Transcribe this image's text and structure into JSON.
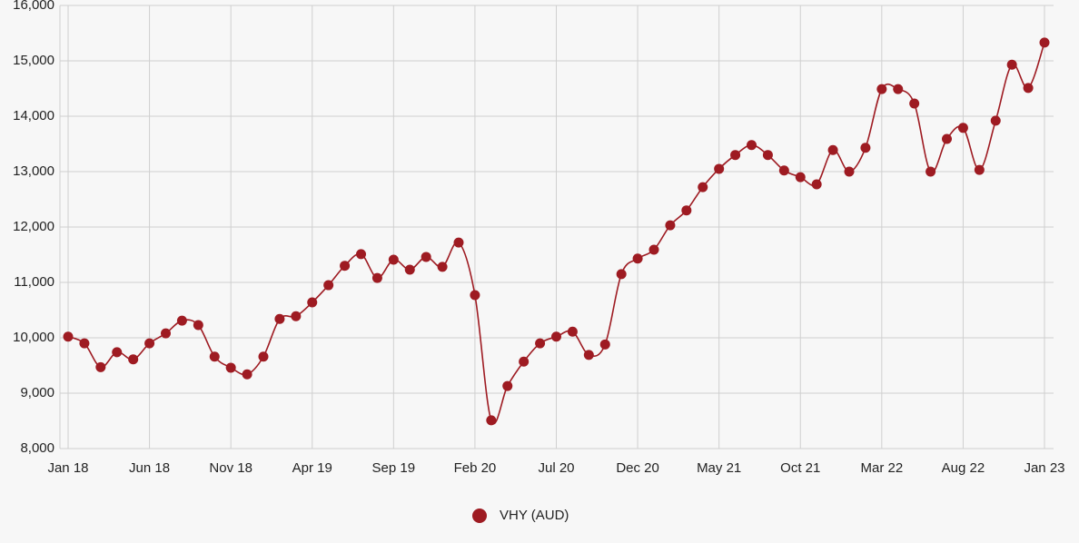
{
  "chart_data": {
    "type": "line",
    "categories": [
      "Jan 18",
      null,
      null,
      null,
      null,
      "Jun 18",
      null,
      null,
      null,
      null,
      "Nov 18",
      null,
      null,
      null,
      null,
      "Apr 19",
      null,
      null,
      null,
      null,
      "Sep 19",
      null,
      null,
      null,
      null,
      "Feb 20",
      null,
      null,
      null,
      null,
      "Jul 20",
      null,
      null,
      null,
      null,
      "Dec 20",
      null,
      null,
      null,
      null,
      "May 21",
      null,
      null,
      null,
      null,
      "Oct 21",
      null,
      null,
      null,
      null,
      "Mar 22",
      null,
      null,
      null,
      null,
      "Aug 22",
      null,
      null,
      null,
      null,
      "Jan 23"
    ],
    "series": [
      {
        "name": "VHY (AUD)",
        "color": "#9e1b22",
        "values": [
          10020,
          9900,
          9470,
          9740,
          9610,
          9900,
          10080,
          10310,
          10230,
          9660,
          9460,
          9340,
          9660,
          10340,
          10390,
          10640,
          10950,
          11300,
          11510,
          11080,
          11410,
          11230,
          11460,
          11280,
          11720,
          10770,
          8510,
          9130,
          9570,
          9900,
          10020,
          10110,
          9690,
          9880,
          11150,
          11430,
          11590,
          12030,
          12300,
          12720,
          13050,
          13300,
          13480,
          13300,
          13020,
          12900,
          12770,
          13390,
          13000,
          13430,
          14490,
          14490,
          14230,
          13000,
          13590,
          13790,
          13030,
          13920,
          14930,
          14510,
          15330
        ]
      }
    ],
    "ylim": [
      8000,
      16000
    ],
    "yticks": [
      {
        "value": 8000,
        "label": "8,000"
      },
      {
        "value": 9000,
        "label": "9,000"
      },
      {
        "value": 10000,
        "label": "10,000"
      },
      {
        "value": 11000,
        "label": "11,000"
      },
      {
        "value": 12000,
        "label": "12,000"
      },
      {
        "value": 13000,
        "label": "13,000"
      },
      {
        "value": 14000,
        "label": "14,000"
      },
      {
        "value": 15000,
        "label": "15,000"
      },
      {
        "value": 16000,
        "label": "16,000"
      }
    ],
    "grid": true,
    "legend": "bottom"
  }
}
